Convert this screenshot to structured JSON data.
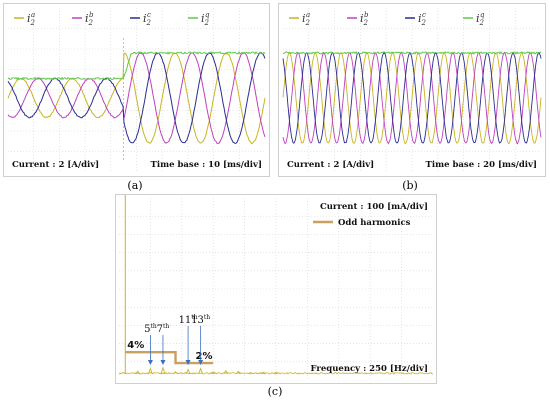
{
  "panels": [
    {
      "id": "a",
      "caption": "(a)",
      "legend": [
        {
          "sym": "i",
          "sub": "2",
          "sup": "a",
          "color": "#c9b423"
        },
        {
          "sym": "i",
          "sub": "2",
          "sup": "b",
          "color": "#c040c0"
        },
        {
          "sym": "i",
          "sub": "2",
          "sup": "c",
          "color": "#2b2b90"
        },
        {
          "sym": "i",
          "sub": "2",
          "sup": "q",
          "color": "#5fc94a"
        }
      ],
      "current_label": "Current : 2 [A/div]",
      "time_label": "Time base : 10 [ms/div]"
    },
    {
      "id": "b",
      "caption": "(b)",
      "legend": [
        {
          "sym": "i",
          "sub": "2",
          "sup": "a",
          "color": "#c9b423"
        },
        {
          "sym": "i",
          "sub": "2",
          "sup": "b",
          "color": "#c040c0"
        },
        {
          "sym": "i",
          "sub": "2",
          "sup": "c",
          "color": "#2b2b90"
        },
        {
          "sym": "i",
          "sub": "2",
          "sup": "q",
          "color": "#5fc94a"
        }
      ],
      "current_label": "Current : 2 [A/div]",
      "time_label": "Time base : 20 [ms/div]"
    },
    {
      "id": "c",
      "caption": "(c)",
      "current_label": "Current : 100 [mA/div]",
      "legend_label": "Odd harmonics",
      "legend_color": "#c8a060",
      "freq_label": "Frequency : 250 [Hz/div]",
      "pct_high": "4%",
      "pct_low": "2%",
      "harmonics": [
        {
          "num": "5",
          "sup": "th"
        },
        {
          "num": "7",
          "sup": "th"
        },
        {
          "num": "11",
          "sup": "th"
        },
        {
          "num": "13",
          "sup": "th"
        }
      ]
    }
  ],
  "chart_data": [
    {
      "type": "line",
      "panel": "a",
      "xlabel": "Time base : 10 [ms/div]",
      "ylabel": "Current : 2 [A/div]",
      "series": [
        {
          "name": "i2a",
          "color": "#c9b423"
        },
        {
          "name": "i2b",
          "color": "#c040c0"
        },
        {
          "name": "i2c",
          "color": "#2b2b90"
        },
        {
          "name": "i2q",
          "color": "#5fc94a"
        }
      ],
      "step": {
        "before_amp_div": 0.95,
        "after_amp_div": 2.2,
        "q_before_div": 0.95,
        "q_after_div": 2.2,
        "step_div": 4.5
      },
      "cycles_per_div": 0.5
    },
    {
      "type": "line",
      "panel": "b",
      "xlabel": "Time base : 20 [ms/div]",
      "ylabel": "Current : 2 [A/div]",
      "series": [
        {
          "name": "i2a",
          "color": "#c9b423"
        },
        {
          "name": "i2b",
          "color": "#c040c0"
        },
        {
          "name": "i2c",
          "color": "#2b2b90"
        },
        {
          "name": "i2q",
          "color": "#5fc94a"
        }
      ],
      "amp_div": 2.2,
      "q_div": 2.2,
      "cycles_per_div": 1.0
    },
    {
      "type": "bar",
      "panel": "c",
      "xlabel": "Frequency : 250 [Hz/div]",
      "ylabel": "Current : 100 [mA/div]",
      "limits": [
        {
          "label": "4%",
          "from_order": 1,
          "to_order": 9,
          "level_div": 1.2
        },
        {
          "label": "2%",
          "from_order": 9,
          "to_order": 15,
          "level_div": 0.6
        }
      ],
      "fundamental_hz": 50,
      "fundamental_div": 10,
      "spectrum": [
        {
          "order": 3,
          "div": 0.15
        },
        {
          "order": 5,
          "div": 0.3
        },
        {
          "order": 7,
          "div": 0.35
        },
        {
          "order": 9,
          "div": 0.12
        },
        {
          "order": 11,
          "div": 0.25
        },
        {
          "order": 13,
          "div": 0.3
        },
        {
          "order": 15,
          "div": 0.12
        },
        {
          "order": 17,
          "div": 0.18
        },
        {
          "order": 19,
          "div": 0.15
        },
        {
          "order": 21,
          "div": 0.08
        },
        {
          "order": 23,
          "div": 0.1
        },
        {
          "order": 25,
          "div": 0.1
        }
      ]
    }
  ]
}
